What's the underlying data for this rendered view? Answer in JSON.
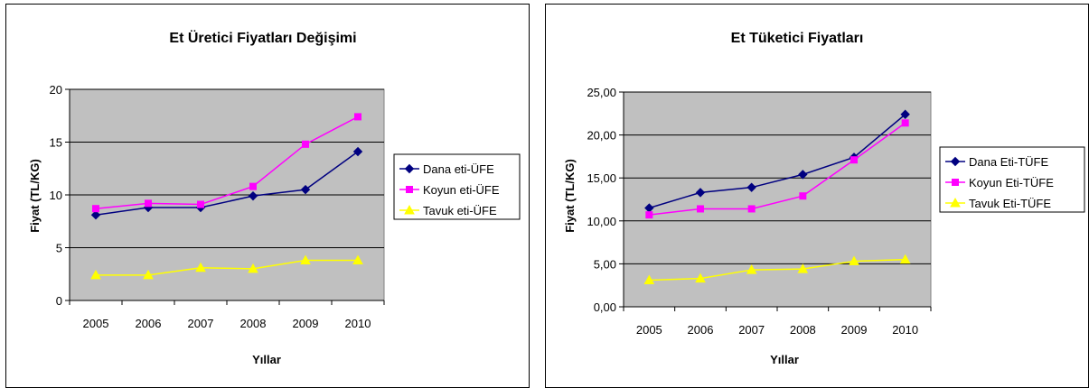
{
  "chart_data": [
    {
      "type": "line",
      "title": "Et Üretici Fiyatları Değişimi",
      "xlabel": "Yıllar",
      "ylabel": "Fiyat (TL/KG)",
      "categories": [
        "2005",
        "2006",
        "2007",
        "2008",
        "2009",
        "2010"
      ],
      "ylim": [
        0,
        20
      ],
      "ytick_values": [
        0,
        5,
        10,
        15,
        20
      ],
      "ytick_labels": [
        "0",
        "5",
        "10",
        "15",
        "20"
      ],
      "grid": true,
      "plot_background": "#c0c0c0",
      "legend_position": "right",
      "series": [
        {
          "name": "Dana eti-ÜFE",
          "values": [
            8.1,
            8.8,
            8.8,
            9.9,
            10.5,
            14.1
          ],
          "color": "#000080",
          "marker": "diamond"
        },
        {
          "name": "Koyun eti-ÜFE",
          "values": [
            8.7,
            9.2,
            9.1,
            10.8,
            14.8,
            17.4
          ],
          "color": "#ff00ff",
          "marker": "square"
        },
        {
          "name": "Tavuk eti-ÜFE",
          "values": [
            2.4,
            2.4,
            3.1,
            3.0,
            3.8,
            3.8
          ],
          "color": "#ffff00",
          "marker": "triangle"
        }
      ]
    },
    {
      "type": "line",
      "title": "Et Tüketici Fiyatları",
      "xlabel": "Yıllar",
      "ylabel": "Fiyat (TL/KG)",
      "categories": [
        "2005",
        "2006",
        "2007",
        "2008",
        "2009",
        "2010"
      ],
      "ylim": [
        0,
        25
      ],
      "ytick_values": [
        0,
        5,
        10,
        15,
        20,
        25
      ],
      "ytick_labels": [
        "0,00",
        "5,00",
        "10,00",
        "15,00",
        "20,00",
        "25,00"
      ],
      "grid": true,
      "plot_background": "#c0c0c0",
      "legend_position": "right",
      "series": [
        {
          "name": "Dana Eti-TÜFE",
          "values": [
            11.5,
            13.3,
            13.9,
            15.4,
            17.4,
            22.4
          ],
          "color": "#000080",
          "marker": "diamond"
        },
        {
          "name": "Koyun Eti-TÜFE",
          "values": [
            10.7,
            11.4,
            11.4,
            12.9,
            17.1,
            21.4
          ],
          "color": "#ff00ff",
          "marker": "square"
        },
        {
          "name": "Tavuk Eti-TÜFE",
          "values": [
            3.1,
            3.3,
            4.3,
            4.4,
            5.3,
            5.5
          ],
          "color": "#ffff00",
          "marker": "triangle"
        }
      ]
    }
  ]
}
